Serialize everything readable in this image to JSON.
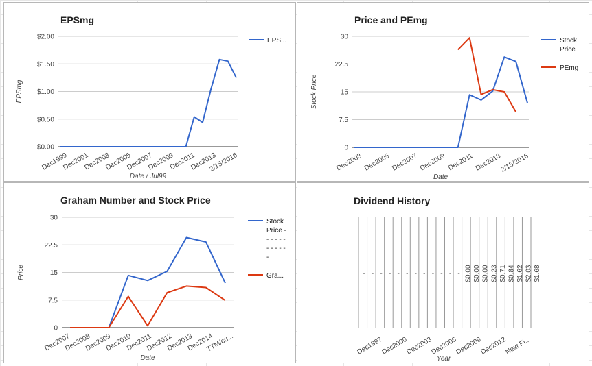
{
  "colors": {
    "blue": "#3366cc",
    "red": "#dc3912"
  },
  "chart_data": [
    {
      "type": "line",
      "title": "EPSmg",
      "xlabel": "Date / Jul99",
      "ylabel": "EPSmg",
      "yticks": [
        "$2.00",
        "$1.50",
        "$1.00",
        "$0.50",
        "$0.00"
      ],
      "ylim": [
        0,
        2
      ],
      "x_tick_labels": [
        "Dec1999",
        "Dec2001",
        "Dec2003",
        "Dec2005",
        "Dec2007",
        "Dec2009",
        "Dec2011",
        "Dec2013",
        "2/15/2016"
      ],
      "legend": [
        "EPS..."
      ],
      "series": [
        {
          "name": "EPS...",
          "color": "blue",
          "values": [
            0,
            0,
            0,
            0,
            0,
            0,
            0,
            0,
            0,
            0,
            0,
            0,
            0,
            0,
            0,
            0,
            0.54,
            0.44,
            1.05,
            1.58,
            1.55,
            1.25
          ]
        }
      ]
    },
    {
      "type": "line",
      "title": "Price and PEmg",
      "xlabel": "Date",
      "ylabel": "Stock Price",
      "yticks": [
        "30",
        "22.5",
        "15",
        "7.5",
        "0"
      ],
      "ylim": [
        0,
        30
      ],
      "x_tick_labels": [
        "Dec2003",
        "Dec2005",
        "Dec2007",
        "Dec2009",
        "Dec2011",
        "Dec2013",
        "2/15/2016"
      ],
      "legend": [
        "Stock Price",
        "PEmg"
      ],
      "series": [
        {
          "name": "Stock Price",
          "color": "blue",
          "values": [
            0,
            0,
            0,
            0,
            0,
            0,
            0,
            0,
            0,
            0,
            14.2,
            12.8,
            15.2,
            24.4,
            23.2,
            12.0
          ]
        },
        {
          "name": "PEmg",
          "color": "red",
          "values": [
            null,
            null,
            null,
            null,
            null,
            null,
            null,
            null,
            null,
            26.4,
            29.6,
            14.3,
            15.6,
            15.0,
            9.6
          ]
        }
      ]
    },
    {
      "type": "line",
      "title": "Graham Number and Stock Price",
      "xlabel": "Date",
      "ylabel": "Price",
      "yticks": [
        "30",
        "22.5",
        "15",
        "7.5",
        "0"
      ],
      "ylim": [
        0,
        30
      ],
      "x_tick_labels": [
        "Dec2007",
        "Dec2008",
        "Dec2009",
        "Dec2010",
        "Dec2011",
        "Dec2012",
        "Dec2013",
        "Dec2014",
        "TTM/cu..."
      ],
      "legend": [
        "Stock Price - ------ ------ -",
        "Gra..."
      ],
      "legend_lines": [
        [
          "Stock",
          "Price -",
          "- - - - -",
          "- - - - -",
          "-"
        ],
        [
          "Gra..."
        ]
      ],
      "series": [
        {
          "name": "Stock Price",
          "color": "blue",
          "values": [
            0,
            0,
            0,
            14.2,
            12.8,
            15.3,
            24.5,
            23.3,
            12.1
          ]
        },
        {
          "name": "Graham Number",
          "color": "red",
          "values": [
            0,
            0,
            0,
            8.5,
            0.5,
            9.5,
            11.3,
            10.9,
            7.4
          ]
        }
      ]
    },
    {
      "type": "bar",
      "title": "Dividend History",
      "xlabel": "Year",
      "x_tick_labels": [
        "Dec1997",
        "Dec2000",
        "Dec2003",
        "Dec2006",
        "Dec2009",
        "Dec2012",
        "Next Fi..."
      ],
      "data_labels": [
        "-",
        "-",
        "-",
        "-",
        "-",
        "-",
        "-",
        "-",
        "-",
        "-",
        "-",
        "-",
        "$0.00",
        "$0.00",
        "$0.00",
        "$0.23",
        "$0.71",
        "$0.84",
        "$1.62",
        "$2.03",
        "$1.68"
      ]
    }
  ]
}
